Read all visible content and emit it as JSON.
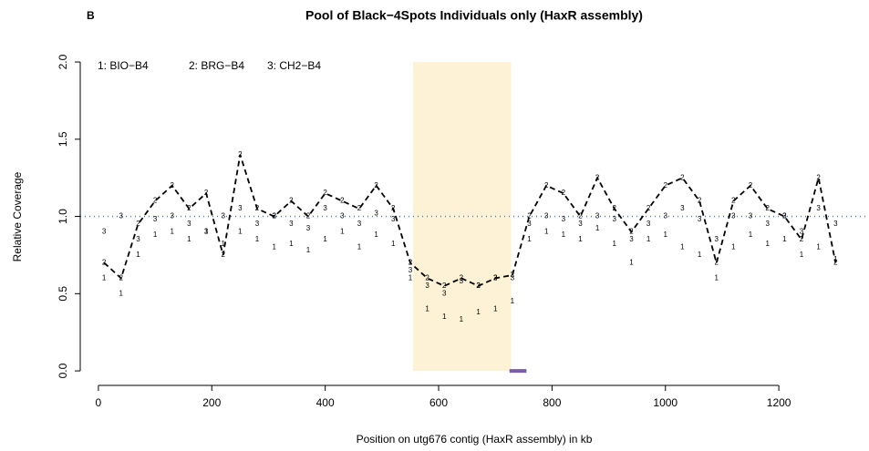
{
  "chart_data": {
    "type": "symbol-line",
    "panel_label": "B",
    "title": "Pool of Black−4Spots Individuals only (HaxR assembly)",
    "x_label": "Position on utg676 contig (HaxR assembly) in kb",
    "y_label": "Relative Coverage",
    "xlim": [
      -32,
      1359
    ],
    "ylim": [
      -0.094,
      2.077
    ],
    "xticks": [
      0,
      200,
      400,
      600,
      800,
      1000,
      1200
    ],
    "yticks": [
      {
        "value": 0,
        "label": "0.0"
      },
      0.5,
      {
        "value": 1,
        "label": "1.0"
      },
      1.5,
      {
        "value": 2,
        "label": "2.0"
      }
    ],
    "reference_line": {
      "y": 1,
      "color": "#4a7fb5"
    },
    "highlight": {
      "x": [
        555,
        728
      ],
      "y": [
        0,
        2
      ],
      "color": "#fdf2d6"
    },
    "marker_bar": {
      "x": [
        725,
        755
      ],
      "y": 0,
      "color": "#7b5ea7"
    },
    "x": [
      10,
      40,
      70,
      100,
      130,
      160,
      190,
      220,
      250,
      280,
      310,
      340,
      370,
      400,
      430,
      460,
      490,
      520,
      550,
      580,
      610,
      640,
      670,
      700,
      730,
      760,
      790,
      820,
      850,
      880,
      910,
      940,
      970,
      1000,
      1030,
      1060,
      1090,
      1120,
      1150,
      1180,
      1210,
      1240,
      1270,
      1300
    ],
    "series": [
      {
        "name": "1: BIO−B4",
        "symbol": "1",
        "color": "#000000",
        "values": [
          0.6,
          0.5,
          0.75,
          0.88,
          0.9,
          0.85,
          0.9,
          0.82,
          0.9,
          0.85,
          0.8,
          0.82,
          0.78,
          0.85,
          0.9,
          0.8,
          0.88,
          0.82,
          0.6,
          0.4,
          0.35,
          0.33,
          0.38,
          0.4,
          0.45,
          0.85,
          0.9,
          0.88,
          0.85,
          0.92,
          0.82,
          0.7,
          0.85,
          0.88,
          0.8,
          0.75,
          0.6,
          0.8,
          0.88,
          0.82,
          0.85,
          0.75,
          0.8,
          0.72
        ]
      },
      {
        "name": "2: BRG−B4",
        "symbol": "2",
        "color": "#000000",
        "linestyle": "dashed",
        "values": [
          0.7,
          0.6,
          0.95,
          1.1,
          1.2,
          1.05,
          1.15,
          0.75,
          1.4,
          1.05,
          1.0,
          1.1,
          1.0,
          1.15,
          1.1,
          1.05,
          1.2,
          1.05,
          0.7,
          0.6,
          0.55,
          0.6,
          0.55,
          0.6,
          0.62,
          1.0,
          1.2,
          1.15,
          1.0,
          1.25,
          1.05,
          0.9,
          1.05,
          1.2,
          1.25,
          1.1,
          0.7,
          1.1,
          1.2,
          1.05,
          1.0,
          0.85,
          1.25,
          0.7
        ]
      },
      {
        "name": "3: CH2−B4",
        "symbol": "3",
        "color": "#000000",
        "values": [
          0.9,
          1.0,
          0.85,
          0.98,
          1.0,
          0.95,
          0.9,
          1.0,
          1.05,
          0.95,
          1.0,
          0.95,
          0.92,
          1.05,
          1.0,
          0.95,
          1.02,
          0.98,
          0.65,
          0.55,
          0.5,
          0.58,
          0.55,
          0.6,
          0.6,
          0.95,
          1.0,
          0.98,
          0.95,
          1.0,
          0.98,
          0.85,
          0.95,
          1.0,
          1.05,
          0.98,
          0.85,
          1.0,
          1.0,
          0.95,
          1.0,
          0.9,
          1.05,
          0.95
        ]
      }
    ]
  }
}
